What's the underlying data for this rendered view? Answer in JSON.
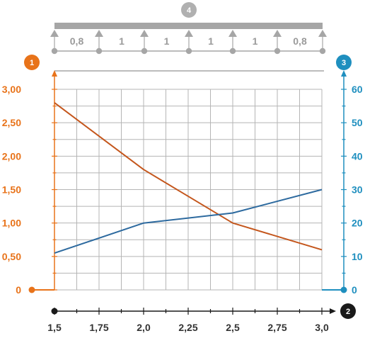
{
  "colors": {
    "left_axis": "#e8731a",
    "right_axis": "#1f8fbf",
    "x_axis": "#1a1a1a",
    "grid": "#b5b5b5",
    "beam": "#a6a6a6",
    "badge_4": "#b0b0b0"
  },
  "badges": {
    "left_axis": "1",
    "x_axis": "2",
    "right_axis": "3",
    "beam": "4"
  },
  "beam_spans": [
    "0,8",
    "1",
    "1",
    "1",
    "1",
    "0,8"
  ],
  "chart_data": {
    "type": "line",
    "x_ticks": [
      "1,5",
      "1,75",
      "2,0",
      "2,25",
      "2,5",
      "2,75",
      "3,0"
    ],
    "xlim": [
      1.5,
      3.0
    ],
    "y_left_ticks": [
      "0",
      "0,50",
      "1,00",
      "1,50",
      "2,00",
      "2,50",
      "3,00"
    ],
    "ylim_left": [
      0,
      3.0
    ],
    "y_right_ticks": [
      "0",
      "10",
      "20",
      "30",
      "40",
      "50",
      "60"
    ],
    "ylim_right": [
      0,
      60
    ],
    "grid": true,
    "series": [
      {
        "axis": "left",
        "color": "#c4561c",
        "x": [
          1.5,
          2.0,
          2.5,
          3.0
        ],
        "y": [
          2.8,
          1.8,
          1.0,
          0.6
        ]
      },
      {
        "axis": "right",
        "color": "#2d6a9f",
        "x": [
          1.5,
          2.0,
          2.5,
          3.0
        ],
        "y": [
          11,
          20,
          23,
          30
        ]
      }
    ]
  }
}
